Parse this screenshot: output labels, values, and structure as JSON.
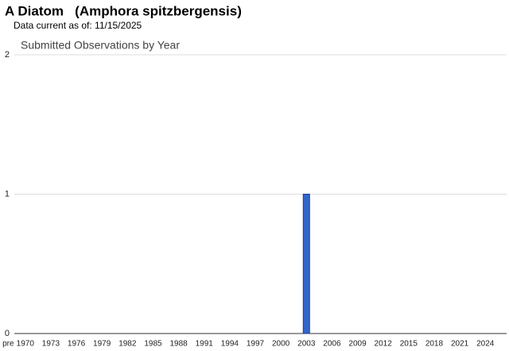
{
  "header": {
    "title": "A Diatom   (Amphora spitzbergensis)",
    "subtitle": "Data current as of: 11/15/2025"
  },
  "chart_data": {
    "type": "bar",
    "title": "Submitted Observations by Year",
    "categories": [
      "pre",
      null,
      "1970",
      null,
      null,
      "1973",
      null,
      null,
      "1976",
      null,
      null,
      "1979",
      null,
      null,
      "1982",
      null,
      null,
      "1985",
      null,
      null,
      "1988",
      null,
      null,
      "1991",
      null,
      null,
      "1994",
      null,
      null,
      "1997",
      null,
      null,
      "2000",
      null,
      null,
      "2003",
      null,
      null,
      "2006",
      null,
      null,
      "2009",
      null,
      null,
      "2012",
      null,
      null,
      "2015",
      null,
      null,
      "2018",
      null,
      null,
      "2021",
      null,
      null,
      "2024",
      null,
      null
    ],
    "values": [
      0,
      0,
      0,
      0,
      0,
      0,
      0,
      0,
      0,
      0,
      0,
      0,
      0,
      0,
      0,
      0,
      0,
      0,
      0,
      0,
      0,
      0,
      0,
      0,
      0,
      0,
      0,
      0,
      0,
      0,
      0,
      0,
      0,
      0,
      0,
      1,
      0,
      0,
      0,
      0,
      0,
      0,
      0,
      0,
      0,
      0,
      0,
      0,
      0,
      0,
      0,
      0,
      0,
      0,
      0,
      0,
      0,
      0,
      0
    ],
    "color": "#3366cc",
    "ylim": [
      0,
      2
    ],
    "yticks": [
      0,
      1,
      2
    ],
    "grid": true
  }
}
